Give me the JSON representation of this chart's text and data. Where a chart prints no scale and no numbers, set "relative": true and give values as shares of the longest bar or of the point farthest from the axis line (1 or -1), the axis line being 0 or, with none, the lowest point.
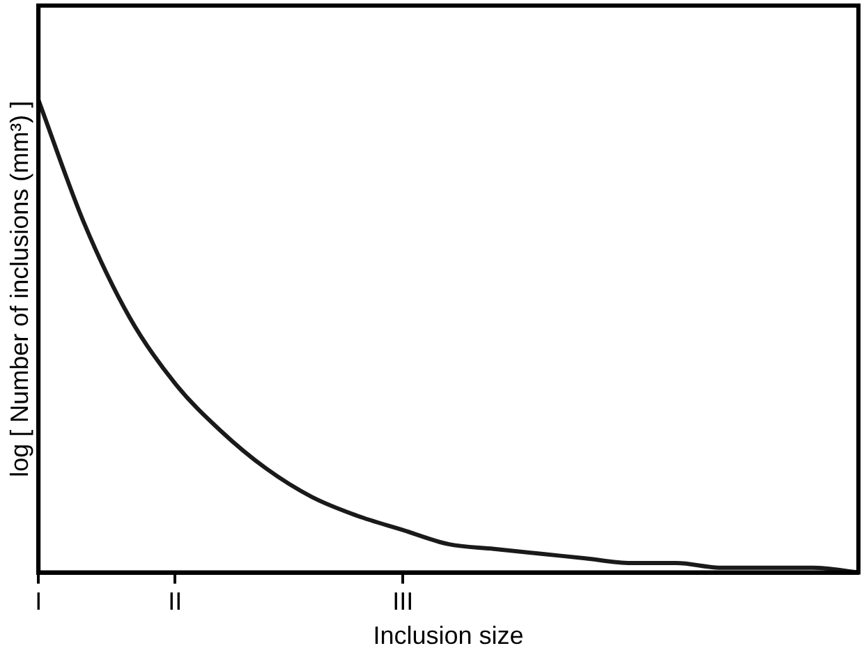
{
  "chart_data": {
    "type": "line",
    "xlabel": "Inclusion size",
    "ylabel": "log [ Number of inclusions (mm³) ]",
    "categories": [
      "I",
      null,
      null,
      "II",
      null,
      null,
      null,
      null,
      "III",
      null,
      null,
      null,
      null,
      null,
      null,
      null,
      null,
      null,
      null
    ],
    "series": [
      {
        "color": "#1a1a1a",
        "values": [
          1.0,
          0.74,
          0.54,
          0.4,
          0.3,
          0.22,
          0.16,
          0.12,
          0.09,
          0.06,
          0.05,
          0.04,
          0.03,
          0.02,
          0.02,
          0.01,
          0.01,
          0.01,
          0.0
        ]
      }
    ],
    "relative": true,
    "grid": false,
    "legend": false,
    "marker": "none",
    "line_style": "solid"
  }
}
